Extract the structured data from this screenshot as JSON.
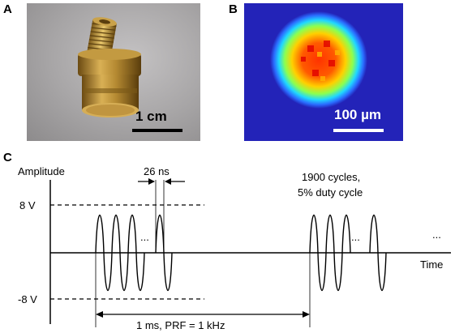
{
  "panels": {
    "a": {
      "letter": "A",
      "scale_label": "1 cm"
    },
    "b": {
      "letter": "B",
      "scale_label": "100 µm"
    },
    "c": {
      "letter": "C"
    }
  },
  "diagram": {
    "y_axis_label": "Amplitude",
    "x_axis_label": "Time",
    "level_high": "8 V",
    "level_low": "-8 V",
    "pulse_width": "26 ns",
    "burst_note_line1": "1900 cycles,",
    "burst_note_line2": "5% duty cycle",
    "period_label": "1 ms, PRF = 1 kHz",
    "ellipsis_1": "...",
    "ellipsis_2": "...",
    "ellipsis_3": "..."
  },
  "colors": {
    "heatmap_background": "#2323b8",
    "scale_bar_photo": "#000000",
    "scale_bar_heatmap": "#ffffff"
  }
}
